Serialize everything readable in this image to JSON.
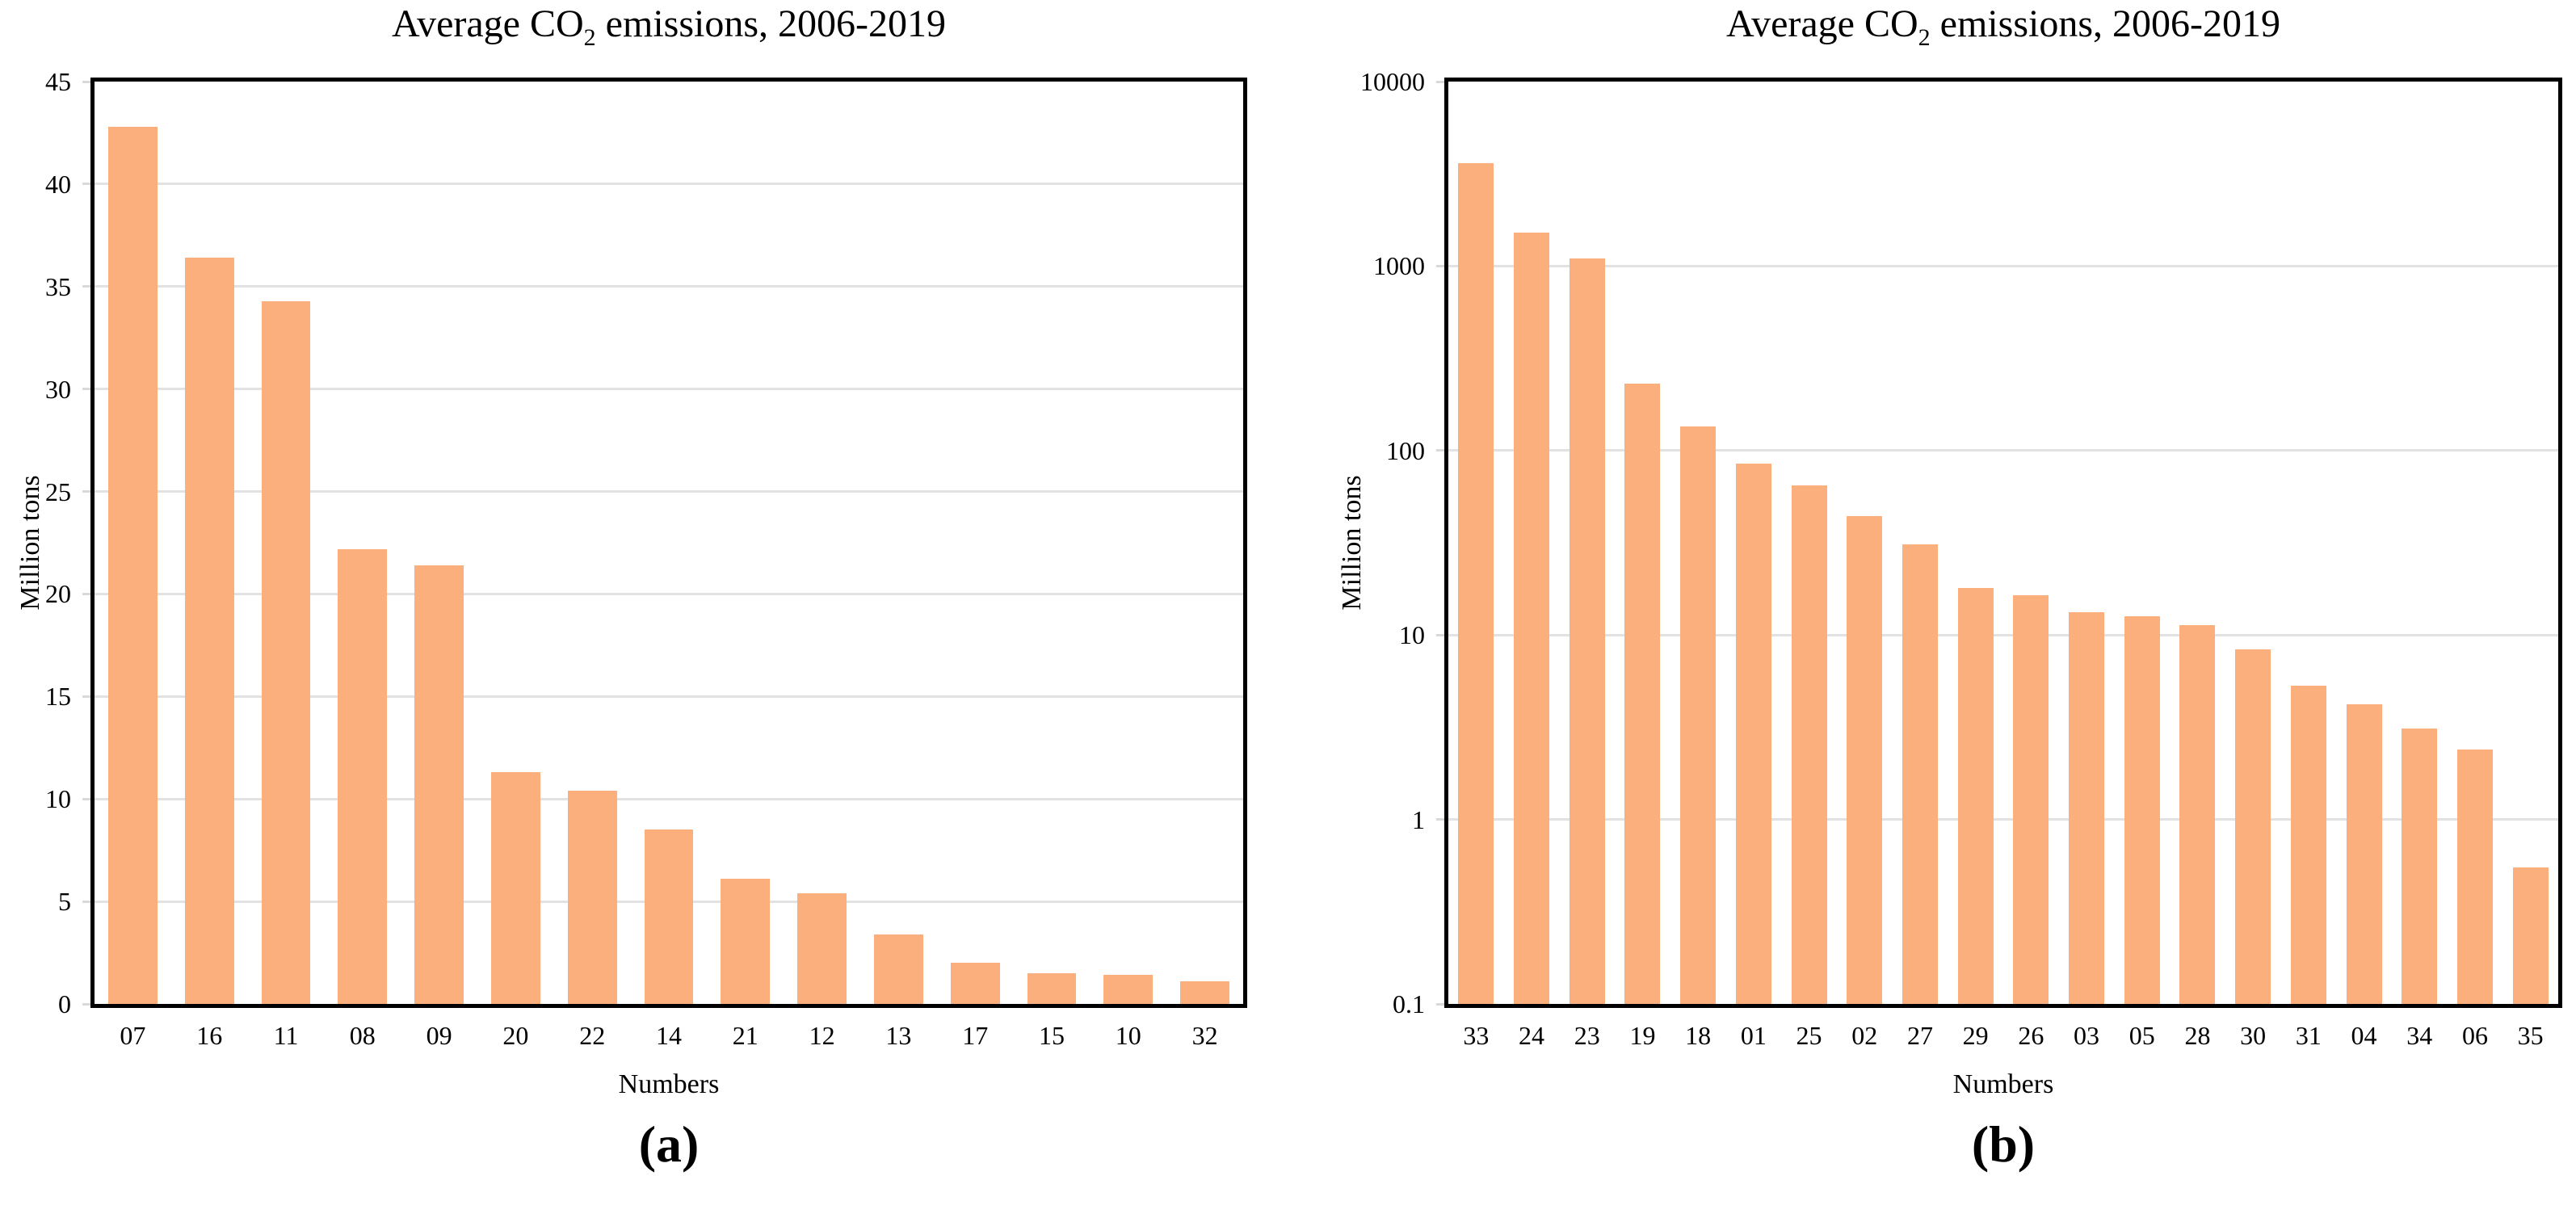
{
  "figure": {
    "background_color": "#ffffff",
    "axis_color": "#000000",
    "tick_color": "#d9d9d9"
  },
  "chart_data": [
    {
      "panel": "a",
      "type": "bar",
      "title": "Average CO2 emissions, 2006-2019",
      "title_pre": "Average CO",
      "title_sub": "2",
      "title_post": " emissions, 2006-2019",
      "xlabel": "Numbers",
      "ylabel": "Million tons",
      "yscale": "linear",
      "ylim": [
        0,
        45
      ],
      "yticks": [
        "0",
        "5",
        "10",
        "15",
        "20",
        "25",
        "30",
        "35",
        "40",
        "45"
      ],
      "grid": "horizontal",
      "legend": "none",
      "categories": [
        "07",
        "16",
        "11",
        "08",
        "09",
        "20",
        "22",
        "14",
        "21",
        "12",
        "13",
        "17",
        "15",
        "10",
        "32"
      ],
      "values": [
        42.8,
        36.4,
        34.3,
        22.2,
        21.4,
        11.3,
        10.4,
        8.5,
        6.1,
        5.4,
        3.4,
        2.0,
        1.5,
        1.4,
        1.1
      ],
      "bar_color": "#fbaf7d",
      "gridline_color": "#e2e2e2",
      "caption": "(a)"
    },
    {
      "panel": "b",
      "type": "bar",
      "title": "Average CO2 emissions, 2006-2019",
      "title_pre": "Average CO",
      "title_sub": "2",
      "title_post": " emissions, 2006-2019",
      "xlabel": "Numbers",
      "ylabel": "Million tons",
      "yscale": "log",
      "ylim": [
        0.1,
        10000
      ],
      "yticks": [
        "0.1",
        "1",
        "10",
        "100",
        "1000",
        "10000"
      ],
      "grid": "horizontal",
      "legend": "none",
      "categories": [
        "33",
        "24",
        "23",
        "19",
        "18",
        "01",
        "25",
        "02",
        "27",
        "29",
        "26",
        "03",
        "05",
        "28",
        "30",
        "31",
        "04",
        "34",
        "06",
        "35"
      ],
      "values": [
        3600,
        1520,
        1100,
        230,
        135,
        85,
        65,
        44,
        31,
        18,
        16.5,
        13.3,
        12.6,
        11.3,
        8.4,
        5.3,
        4.2,
        3.1,
        2.4,
        0.55
      ],
      "bar_color": "#fbaf7d",
      "gridline_color": "#e2e2e2",
      "caption": "(b)"
    }
  ]
}
